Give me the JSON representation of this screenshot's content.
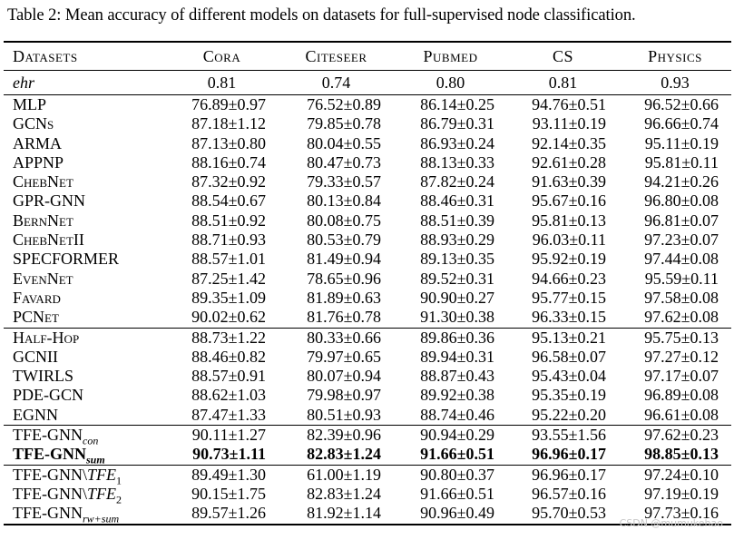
{
  "caption": "Table 2: Mean accuracy of different models on datasets for full-supervised node classification.",
  "headers": {
    "datasets": "Datasets",
    "cols": [
      "Cora",
      "Citeseer",
      "Pubmed",
      "CS",
      "Physics"
    ]
  },
  "ehr": {
    "label": "ehr",
    "values": [
      "0.81",
      "0.74",
      "0.80",
      "0.81",
      "0.93"
    ]
  },
  "rows": [
    {
      "model": "MLP",
      "values": [
        "76.89±0.97",
        "76.52±0.89",
        "86.14±0.25",
        "94.76±0.51",
        "96.52±0.66"
      ]
    },
    {
      "model": "GCNs",
      "values": [
        "87.18±1.12",
        "79.85±0.78",
        "86.79±0.31",
        "93.11±0.19",
        "96.66±0.74"
      ]
    },
    {
      "model": "ARMA",
      "values": [
        "87.13±0.80",
        "80.04±0.55",
        "86.93±0.24",
        "92.14±0.35",
        "95.11±0.19"
      ]
    },
    {
      "model": "APPNP",
      "values": [
        "88.16±0.74",
        "80.47±0.73",
        "88.13±0.33",
        "92.61±0.28",
        "95.81±0.11"
      ]
    },
    {
      "model": "ChebNet",
      "values": [
        "87.32±0.92",
        "79.33±0.57",
        "87.82±0.24",
        "91.63±0.39",
        "94.21±0.26"
      ]
    },
    {
      "model": "GPR-GNN",
      "values": [
        "88.54±0.67",
        "80.13±0.84",
        "88.46±0.31",
        "95.67±0.16",
        "96.80±0.08"
      ]
    },
    {
      "model": "BernNet",
      "values": [
        "88.51±0.92",
        "80.08±0.75",
        "88.51±0.39",
        "95.81±0.13",
        "96.81±0.07"
      ]
    },
    {
      "model": "ChebNetII",
      "values": [
        "88.71±0.93",
        "80.53±0.79",
        "88.93±0.29",
        "96.03±0.11",
        "97.23±0.07"
      ]
    },
    {
      "model": "SPECFORMER",
      "values": [
        "88.57±1.01",
        "81.49±0.94",
        "89.13±0.35",
        "95.92±0.19",
        "97.44±0.08"
      ]
    },
    {
      "model": "EvenNet",
      "values": [
        "87.25±1.42",
        "78.65±0.96",
        "89.52±0.31",
        "94.66±0.23",
        "95.59±0.11"
      ]
    },
    {
      "model": "Favard",
      "values": [
        "89.35±1.09",
        "81.89±0.63",
        "90.90±0.27",
        "95.77±0.15",
        "97.58±0.08"
      ]
    },
    {
      "model": "PCNet",
      "values": [
        "90.02±0.62",
        "81.76±0.78",
        "91.30±0.38",
        "96.33±0.15",
        "97.62±0.08"
      ]
    },
    {
      "model": "Half-Hop",
      "values": [
        "88.73±1.22",
        "80.33±0.66",
        "89.86±0.36",
        "95.13±0.21",
        "95.75±0.13"
      ]
    },
    {
      "model": "GCNII",
      "values": [
        "88.46±0.82",
        "79.97±0.65",
        "89.94±0.31",
        "96.58±0.07",
        "97.27±0.12"
      ]
    },
    {
      "model": "TWIRLS",
      "values": [
        "88.57±0.91",
        "80.07±0.94",
        "88.87±0.43",
        "95.43±0.04",
        "97.17±0.07"
      ]
    },
    {
      "model": "PDE-GCN",
      "values": [
        "88.62±1.03",
        "79.98±0.97",
        "89.92±0.38",
        "95.35±0.19",
        "96.89±0.08"
      ]
    },
    {
      "model": "EGNN",
      "values": [
        "87.47±1.33",
        "80.51±0.93",
        "88.74±0.46",
        "95.22±0.20",
        "96.61±0.08"
      ]
    },
    {
      "model": "TFE-GNN",
      "sub": "con",
      "values": [
        "90.11±1.27",
        "82.39±0.96",
        "90.94±0.29",
        "93.55±1.56",
        "97.62±0.23"
      ]
    },
    {
      "model": "TFE-GNN",
      "sub": "sum",
      "values": [
        "90.73±1.11",
        "82.83±1.24",
        "91.66±0.51",
        "96.96±0.17",
        "98.85±0.13"
      ]
    },
    {
      "model": "TFE-GNN\\",
      "tfe": "TFE",
      "tfe_sub": "1",
      "values": [
        "89.49±1.30",
        "61.00±1.19",
        "90.80±0.37",
        "96.96±0.17",
        "97.24±0.10"
      ]
    },
    {
      "model": "TFE-GNN\\",
      "tfe": "TFE",
      "tfe_sub": "2",
      "values": [
        "90.15±1.75",
        "82.83±1.24",
        "91.66±0.51",
        "96.57±0.16",
        "97.19±0.19"
      ]
    },
    {
      "model": "TFE-GNN",
      "sub": "rw+sum",
      "values": [
        "89.57±1.26",
        "81.92±1.14",
        "90.96±0.49",
        "95.70±0.53",
        "97.73±0.16"
      ]
    }
  ],
  "watermark": "CSDN @mumukehao"
}
